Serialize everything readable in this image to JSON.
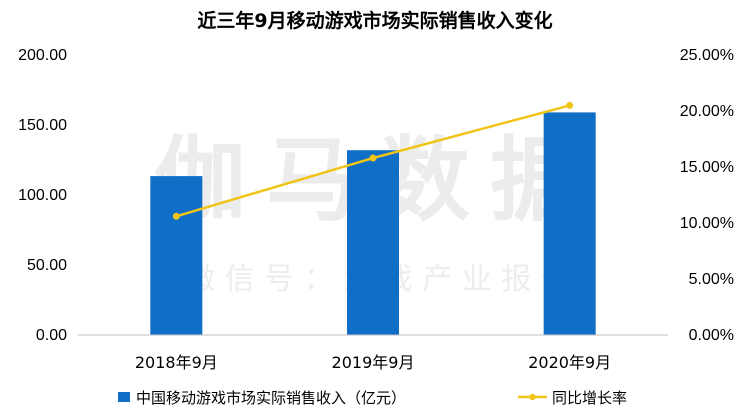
{
  "chart_data": {
    "type": "bar",
    "title": "近三年9月移动游戏市场实际销售收入变化",
    "categories": [
      "2018年9月",
      "2019年9月",
      "2020年9月"
    ],
    "series": [
      {
        "name": "中国移动游戏市场实际销售收入（亿元）",
        "type": "bar",
        "axis": "left",
        "color": "#0f6fc6",
        "values": [
          113.5,
          132.0,
          159.0
        ]
      },
      {
        "name": "同比增长率",
        "type": "line",
        "axis": "right",
        "color": "#f0c419",
        "values": [
          10.6,
          15.8,
          20.5
        ]
      }
    ],
    "y_left": {
      "min": 0,
      "max": 200,
      "step": 50,
      "ticks": [
        "0.00",
        "50.00",
        "100.00",
        "150.00",
        "200.00"
      ]
    },
    "y_right": {
      "min": 0,
      "max": 25,
      "step": 5,
      "unit": "%",
      "ticks": [
        "0.00%",
        "5.00%",
        "10.00%",
        "15.00%",
        "20.00%",
        "25.00%"
      ]
    },
    "grid": false,
    "legend_position": "bottom"
  },
  "watermark": {
    "main": "伽马数据",
    "sub": "微 信 号 ： 游 戏 产 业 报 告"
  }
}
